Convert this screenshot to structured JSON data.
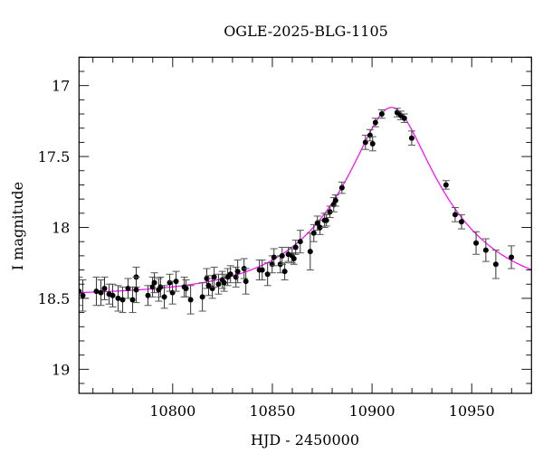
{
  "chart_data": {
    "type": "scatter",
    "title": "OGLE-2025-BLG-1105",
    "xlabel": "HJD - 2450000",
    "ylabel": "I magnitude",
    "xlim": [
      10753,
      10980
    ],
    "ylim": [
      16.8,
      19.17
    ],
    "y_inverted": true,
    "x_major_ticks": [
      10800,
      10850,
      10900,
      10950
    ],
    "x_tick_labels": [
      "10800",
      "10850",
      "10900",
      "10950"
    ],
    "x_minor_step": 10,
    "y_major_ticks": [
      17,
      17.5,
      18,
      18.5,
      19
    ],
    "y_tick_labels": [
      "17",
      "17.5",
      "18",
      "18.5",
      "19"
    ],
    "y_minor_step": 0.1,
    "grid": false,
    "colors": {
      "points": "#000000",
      "errorbars": "#333333",
      "model": "#ff00ff"
    },
    "series": [
      {
        "kind": "points_with_errorbars",
        "points": [
          [
            10753.0,
            18.45,
            0.1
          ],
          [
            10754.9,
            18.48,
            0.11
          ],
          [
            10761.7,
            18.45,
            0.1
          ],
          [
            10764.0,
            18.46,
            0.09
          ],
          [
            10765.8,
            18.43,
            0.08
          ],
          [
            10768.1,
            18.47,
            0.07
          ],
          [
            10769.9,
            18.48,
            0.08
          ],
          [
            10772.6,
            18.5,
            0.09
          ],
          [
            10774.9,
            18.51,
            0.09
          ],
          [
            10777.6,
            18.43,
            0.07
          ],
          [
            10779.9,
            18.51,
            0.09
          ],
          [
            10781.7,
            18.35,
            0.07
          ],
          [
            10781.7,
            18.44,
            0.09
          ],
          [
            10787.6,
            18.48,
            0.07
          ],
          [
            10789.9,
            18.42,
            0.07
          ],
          [
            10790.8,
            18.39,
            0.07
          ],
          [
            10793.0,
            18.44,
            0.08
          ],
          [
            10793.9,
            18.42,
            0.07
          ],
          [
            10795.8,
            18.49,
            0.08
          ],
          [
            10798.5,
            18.39,
            0.06
          ],
          [
            10799.9,
            18.46,
            0.08
          ],
          [
            10801.7,
            18.38,
            0.07
          ],
          [
            10805.8,
            18.42,
            0.07
          ],
          [
            10806.7,
            18.43,
            0.06
          ],
          [
            10809.0,
            18.51,
            0.1
          ],
          [
            10814.9,
            18.49,
            0.1
          ],
          [
            10817.1,
            18.36,
            0.07
          ],
          [
            10818.0,
            18.41,
            0.07
          ],
          [
            10819.9,
            18.43,
            0.07
          ],
          [
            10820.8,
            18.35,
            0.07
          ],
          [
            10823.0,
            18.4,
            0.07
          ],
          [
            10824.9,
            18.37,
            0.06
          ],
          [
            10825.8,
            18.39,
            0.06
          ],
          [
            10827.6,
            18.35,
            0.06
          ],
          [
            10829.0,
            18.33,
            0.06
          ],
          [
            10831.7,
            18.35,
            0.07
          ],
          [
            10832.6,
            18.31,
            0.08
          ],
          [
            10835.8,
            18.29,
            0.07
          ],
          [
            10836.7,
            18.38,
            0.09
          ],
          [
            10843.5,
            18.3,
            0.07
          ],
          [
            10844.9,
            18.3,
            0.07
          ],
          [
            10847.6,
            18.33,
            0.08
          ],
          [
            10849.9,
            18.26,
            0.06
          ],
          [
            10850.8,
            18.21,
            0.06
          ],
          [
            10854.0,
            18.26,
            0.06
          ],
          [
            10854.9,
            18.2,
            0.06
          ],
          [
            10856.2,
            18.31,
            0.06
          ],
          [
            10858.0,
            18.19,
            0.05
          ],
          [
            10859.9,
            18.2,
            0.05
          ],
          [
            10860.8,
            18.22,
            0.04
          ],
          [
            10861.7,
            18.14,
            0.05
          ],
          [
            10864.0,
            18.1,
            0.08
          ],
          [
            10869.0,
            18.17,
            0.13
          ],
          [
            10870.8,
            18.04,
            0.06
          ],
          [
            10872.6,
            17.97,
            0.05
          ],
          [
            10873.9,
            18.0,
            0.05
          ],
          [
            10876.2,
            17.95,
            0.05
          ],
          [
            10877.1,
            17.95,
            0.04
          ],
          [
            10878.9,
            17.89,
            0.04
          ],
          [
            10880.8,
            17.84,
            0.05
          ],
          [
            10881.7,
            17.81,
            0.04
          ],
          [
            10884.9,
            17.72,
            0.04
          ],
          [
            10896.7,
            17.4,
            0.05
          ],
          [
            10899.0,
            17.35,
            0.04
          ],
          [
            10900.3,
            17.41,
            0.05
          ],
          [
            10901.7,
            17.26,
            0.03
          ],
          [
            10904.9,
            17.2,
            0.03
          ],
          [
            10912.6,
            17.19,
            0.03
          ],
          [
            10914.4,
            17.21,
            0.03
          ],
          [
            10916.2,
            17.23,
            0.03
          ],
          [
            10919.9,
            17.37,
            0.05
          ],
          [
            10937.1,
            17.7,
            0.03
          ],
          [
            10941.7,
            17.91,
            0.05
          ],
          [
            10944.9,
            17.96,
            0.05
          ],
          [
            10952.2,
            18.11,
            0.08
          ],
          [
            10957.1,
            18.16,
            0.08
          ],
          [
            10962.1,
            18.26,
            0.1
          ],
          [
            10969.9,
            18.21,
            0.08
          ]
        ]
      },
      {
        "kind": "model_curve",
        "model": "paczynski",
        "t0": 10909.8,
        "u0": 0.305,
        "tE": 54.6,
        "baseline_mag": 18.48
      }
    ]
  }
}
